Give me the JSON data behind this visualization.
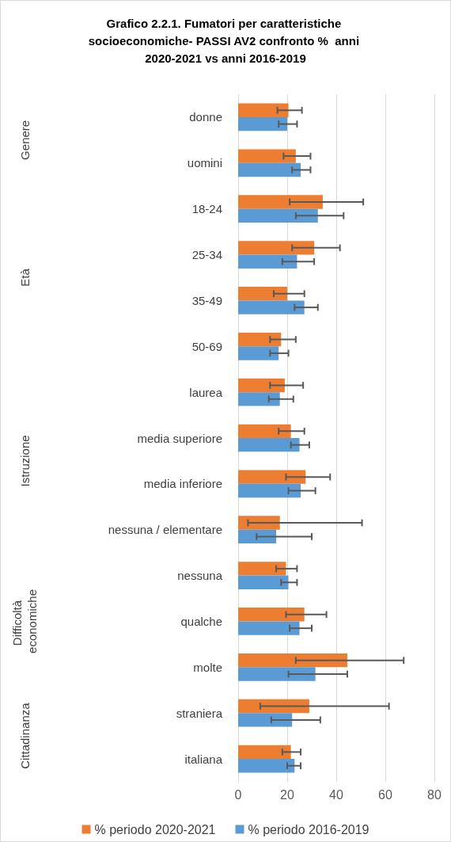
{
  "chart_data": {
    "type": "bar",
    "orientation": "horizontal",
    "title": "Grafico 2.2.1. Fumatori per caratteristiche socioeconomiche- PASSI AV2 confronto %  anni 2020-2021 vs anni 2016-2019",
    "categories": [
      "donne",
      "uomini",
      "18-24",
      "25-34",
      "35-49",
      "50-69",
      "laurea",
      "media superiore",
      "media inferiore",
      "nessuna / elementare",
      "nessuna",
      "qualche",
      "molte",
      "straniera",
      "italiana"
    ],
    "series": [
      {
        "name": "% periodo 2020-2021",
        "color": "#ed7d31",
        "values": [
          20.5,
          23.5,
          34.5,
          31,
          20,
          17.5,
          19,
          21.5,
          27.5,
          17,
          19.5,
          27,
          44.5,
          29,
          21.5
        ],
        "errors": [
          [
            16,
            26
          ],
          [
            18.5,
            29.5
          ],
          [
            21,
            51
          ],
          [
            22,
            41.5
          ],
          [
            14.5,
            27
          ],
          [
            13,
            23.5
          ],
          [
            13,
            26.5
          ],
          [
            16.5,
            27
          ],
          [
            19.5,
            37.5
          ],
          [
            4,
            50.5
          ],
          [
            15.5,
            24
          ],
          [
            19.5,
            36
          ],
          [
            23.5,
            67.5
          ],
          [
            9,
            61.5
          ],
          [
            18,
            25.5
          ]
        ]
      },
      {
        "name": "% periodo 2016-2019",
        "color": "#5b9bd5",
        "values": [
          20,
          25.5,
          32.5,
          24,
          27,
          16.5,
          17,
          25,
          25.5,
          15.5,
          20.5,
          25,
          31.5,
          22,
          23
        ],
        "errors": [
          [
            16.5,
            24
          ],
          [
            22,
            29.5
          ],
          [
            23.5,
            43
          ],
          [
            18,
            31
          ],
          [
            23,
            32.5
          ],
          [
            13,
            20.5
          ],
          [
            12.5,
            22.5
          ],
          [
            21.5,
            29
          ],
          [
            20.5,
            31.5
          ],
          [
            7.5,
            30
          ],
          [
            17.5,
            24
          ],
          [
            21,
            30
          ],
          [
            20.5,
            44.5
          ],
          [
            13.5,
            33.5
          ],
          [
            20,
            25.5
          ]
        ]
      }
    ],
    "xlim": [
      0,
      80
    ],
    "xticks": [
      0,
      20,
      40,
      60,
      80
    ],
    "grid": "x",
    "legend": "bottom",
    "annotations": [
      "Genere",
      "Età",
      "Istruzione",
      "Difficoltà economiche",
      "Cittadinanza"
    ]
  }
}
